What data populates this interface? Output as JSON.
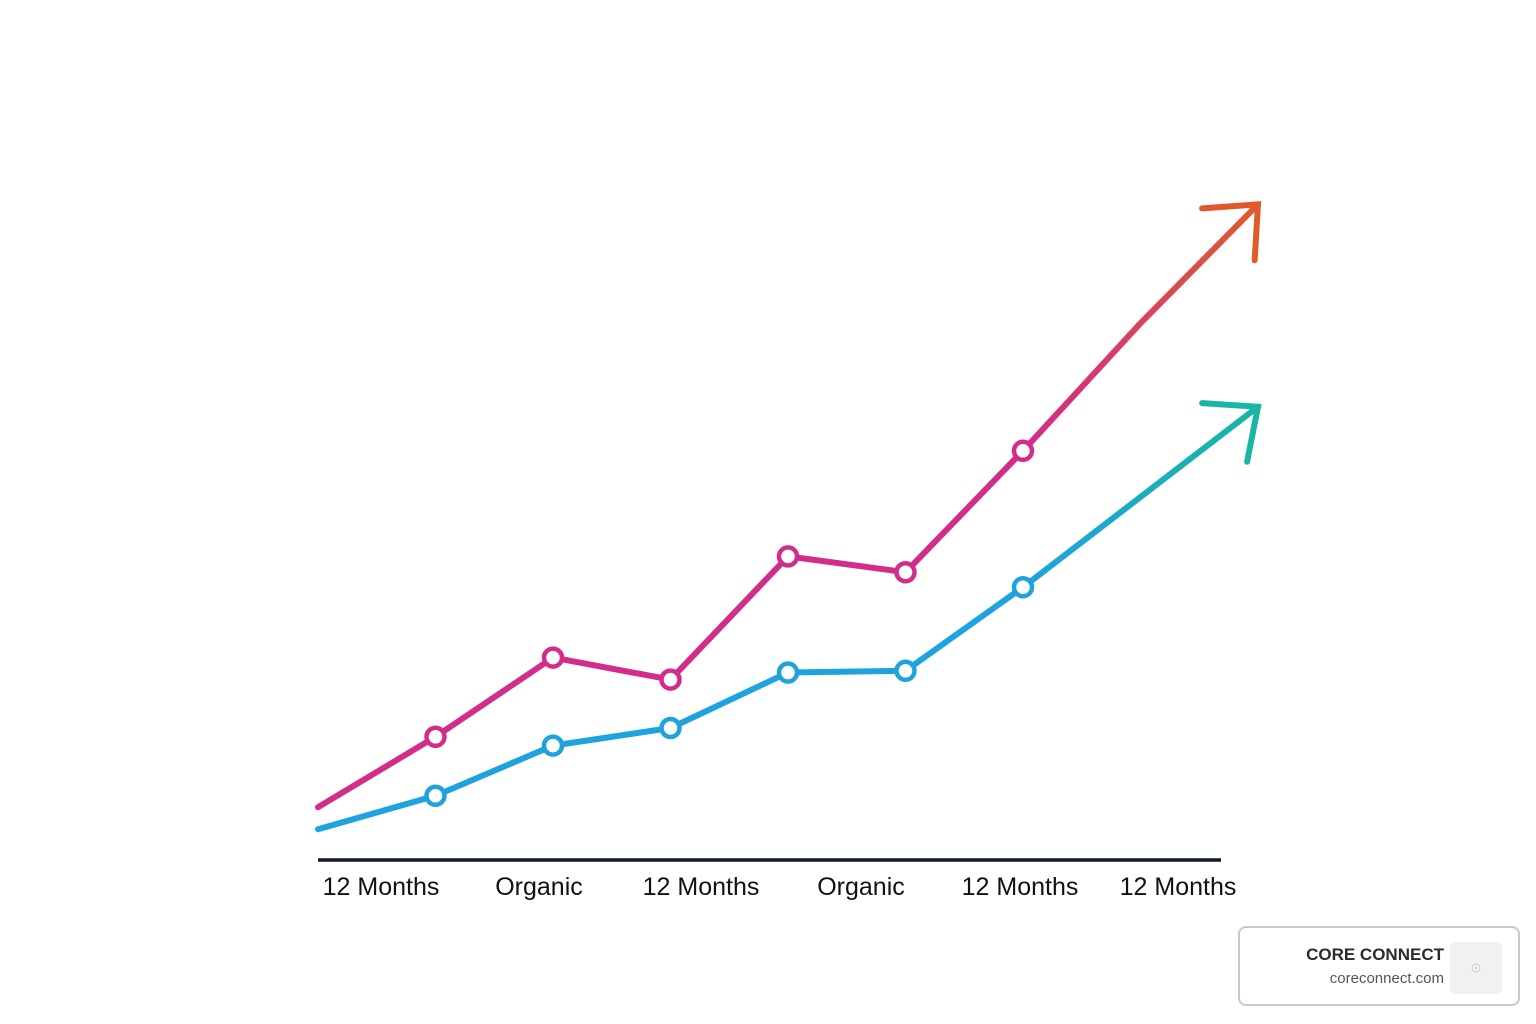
{
  "chart_data": {
    "type": "line",
    "categories": [
      "12 Months",
      "Organic",
      "12 Months",
      "Organic",
      "12 Months",
      "12 Months"
    ],
    "x": [
      0,
      1,
      2,
      3,
      4,
      5,
      6,
      7,
      8
    ],
    "series": [
      {
        "color": "#d22d8a",
        "color_end": "#e05a2d",
        "values": [
          6,
          14,
          23,
          20.5,
          34.5,
          32.7,
          46.5,
          61,
          74.5
        ],
        "markers": [
          1,
          2,
          3,
          4,
          5,
          6
        ]
      },
      {
        "color": "#1ea3de",
        "color_end": "#19b5a5",
        "values": [
          3.5,
          7.3,
          13,
          15,
          21.3,
          21.5,
          31,
          null,
          51.5
        ],
        "markers": [
          1,
          2,
          3,
          4,
          5,
          6
        ]
      }
    ],
    "xlim": [
      0,
      8
    ],
    "ylim": [
      0,
      85
    ],
    "grid": false,
    "legend": "none",
    "axis_color": "#111827"
  },
  "brand": {
    "name": "CORE CONNECT",
    "url": "coreconnect.com"
  }
}
